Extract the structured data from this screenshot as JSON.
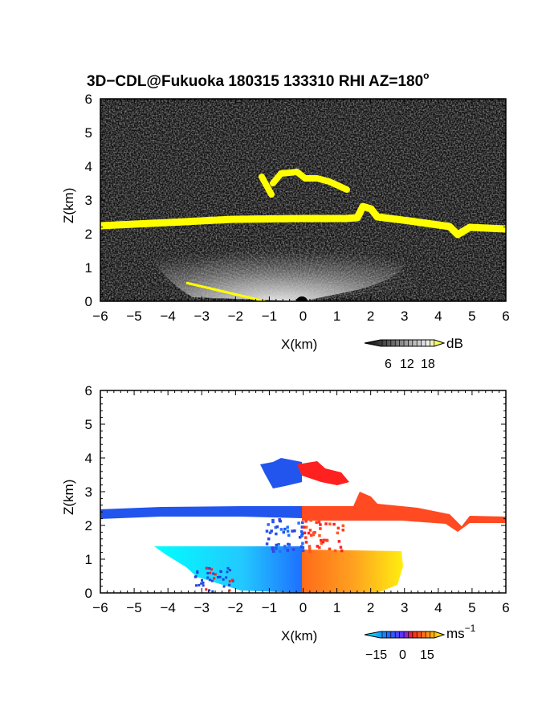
{
  "title": "3D−CDL@Fukuoka 180315 133310 RHI AZ=180",
  "title_degree": "o",
  "chart_data": [
    {
      "type": "heatmap",
      "name": "reflectivity",
      "xlabel": "X(km)",
      "ylabel": "Z(km)",
      "xlim": [
        -6,
        6
      ],
      "ylim": [
        0,
        6
      ],
      "xticks": [
        -6,
        -5,
        -4,
        -3,
        -2,
        -1,
        0,
        1,
        2,
        3,
        4,
        5,
        6
      ],
      "yticks": [
        0,
        1,
        2,
        3,
        4,
        5,
        6
      ],
      "colorbar": {
        "unit": "dB",
        "ticks": [
          "6",
          "12",
          "18"
        ],
        "colors": [
          "#000000",
          "#ffffff",
          "#ffff00"
        ]
      },
      "features": {
        "cloud_base_layer": {
          "x": [
            -6,
            -4,
            -2,
            0,
            1,
            1.5,
            2,
            3,
            4,
            4.5,
            5,
            6
          ],
          "z": [
            2.3,
            2.35,
            2.4,
            2.42,
            2.42,
            2.45,
            2.75,
            2.4,
            2.25,
            2.05,
            2.2,
            2.2
          ],
          "color": "#ffff00"
        },
        "upper_cloud_segment": {
          "x": [
            -1.2,
            -0.8,
            -0.4,
            0,
            0.5,
            1.0,
            1.3
          ],
          "z": [
            3.6,
            3.75,
            3.65,
            3.6,
            3.55,
            3.45,
            3.35
          ],
          "color": "#ffff00"
        },
        "ground_clutter_line": {
          "x": [
            -3.3,
            -0.8
          ],
          "z": [
            0.55,
            0.0
          ],
          "color": "#ffff00"
        }
      }
    },
    {
      "type": "heatmap",
      "name": "doppler_velocity",
      "xlabel": "X(km)",
      "ylabel": "Z(km)",
      "xlim": [
        -6,
        6
      ],
      "ylim": [
        0,
        6
      ],
      "xticks": [
        -6,
        -5,
        -4,
        -3,
        -2,
        -1,
        0,
        1,
        2,
        3,
        4,
        5,
        6
      ],
      "yticks": [
        0,
        1,
        2,
        3,
        4,
        5,
        6
      ],
      "colorbar": {
        "unit": "ms",
        "unit_exponent": "−1",
        "ticks": [
          "−15",
          "0",
          "15"
        ],
        "colors": [
          "#00ffff",
          "#1e6aff",
          "#ff2020",
          "#ffff00"
        ]
      },
      "regions": [
        {
          "label": "cloud_layer_towards",
          "x": [
            -6,
            0
          ],
          "z": [
            2.2,
            2.5
          ],
          "velocity": -12,
          "color": "#2255ee"
        },
        {
          "label": "cloud_layer_away",
          "x": [
            0,
            6
          ],
          "z": [
            2.1,
            2.6
          ],
          "velocity": 10,
          "color": "#ff4020"
        },
        {
          "label": "upper_cloud_towards",
          "x": [
            -1.2,
            0
          ],
          "z": [
            3.2,
            3.9
          ],
          "velocity": -12,
          "color": "#2255ee"
        },
        {
          "label": "upper_cloud_away",
          "x": [
            0,
            1.4
          ],
          "z": [
            3.3,
            3.85
          ],
          "velocity": 8,
          "color": "#ff2020"
        },
        {
          "label": "low_level_towards",
          "x": [
            -4.5,
            0
          ],
          "z": [
            0,
            1.5
          ],
          "velocity": -15,
          "color": "#00ddff"
        },
        {
          "label": "low_level_away",
          "x": [
            0,
            3
          ],
          "z": [
            0,
            1.3
          ],
          "velocity": 14,
          "color": "#ffcc00"
        }
      ]
    }
  ]
}
